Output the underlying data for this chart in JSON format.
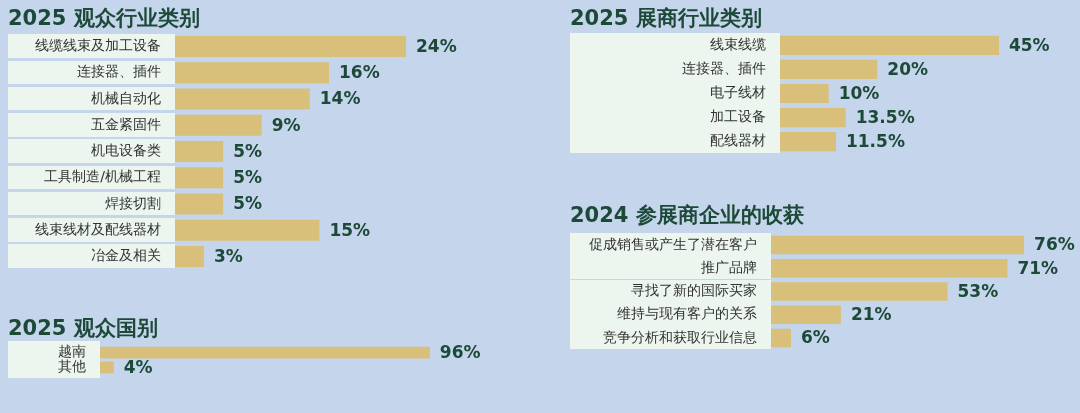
{
  "chart_data": [
    {
      "type": "bar",
      "orientation": "horizontal",
      "title": "2025 观众行业类别",
      "tick_labels": "y",
      "categories": [
        "线缆线束及加工设备",
        "连接器、插件",
        "机械自动化",
        "五金紧固件",
        "机电设备类",
        "工具制造/机械工程",
        "焊接切割",
        "线束线材及配线器材",
        "冶金及相关"
      ],
      "values": [
        24,
        16,
        14,
        9,
        5,
        5,
        5,
        15,
        3
      ],
      "value_labels": [
        "24%",
        "16%",
        "14%",
        "9%",
        "5%",
        "5%",
        "5%",
        "15%",
        "3%"
      ],
      "color": "#d8bf7a"
    },
    {
      "type": "bar",
      "orientation": "horizontal",
      "title": "2025 观众国别",
      "tick_labels": "y",
      "categories": [
        "越南",
        "其他"
      ],
      "values": [
        96,
        4
      ],
      "value_labels": [
        "96%",
        "4%"
      ],
      "color": "#d8bf7a"
    },
    {
      "type": "bar",
      "orientation": "horizontal",
      "title": "2025 展商行业类别",
      "tick_labels": "y",
      "categories": [
        "线束线缆",
        "连接器、插件",
        "电子线材",
        "加工设备",
        "配线器材"
      ],
      "values": [
        45,
        20,
        10,
        13.5,
        11.5
      ],
      "value_labels": [
        "45%",
        "20%",
        "10%",
        "13.5%",
        "11.5%"
      ],
      "color": "#d8bf7a"
    },
    {
      "type": "bar",
      "orientation": "horizontal",
      "title": "2024 参展商企业的收获",
      "tick_labels": "y",
      "categories": [
        "促成销售或产生了潜在客户",
        "推广品牌",
        "寻找了新的国际买家",
        "维持与现有客户的关系",
        "竞争分析和获取行业信息"
      ],
      "values": [
        76,
        71,
        53,
        21,
        6
      ],
      "value_labels": [
        "76%",
        "71%",
        "53%",
        "21%",
        "6%"
      ],
      "color": "#d8bf7a"
    }
  ]
}
